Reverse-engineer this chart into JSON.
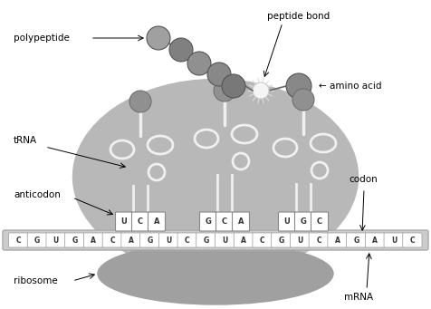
{
  "fig_width": 4.76,
  "fig_height": 3.41,
  "dpi": 100,
  "bg_color": "#ffffff",
  "ribosome_large_color": "#b8b8b8",
  "ribosome_small_color": "#a0a0a0",
  "mrna_bg_color": "#c8c8c8",
  "mrna_box_color": "#e8e8e8",
  "tRNA_white": "#f0f0f0",
  "gray_dark": "#707070",
  "gray_med": "#909090",
  "gray_light": "#b0b0b0",
  "mRNA_sequence": [
    "C",
    "G",
    "U",
    "G",
    "A",
    "C",
    "A",
    "G",
    "U",
    "C",
    "G",
    "U",
    "A",
    "C",
    "G",
    "U",
    "C",
    "A",
    "G",
    "A",
    "U",
    "C"
  ],
  "label_fontsize": 7.5,
  "anticodon1": [
    "U",
    "C",
    "A"
  ],
  "anticodon2": [
    "G",
    "C",
    "A"
  ],
  "anticodon3": [
    "U",
    "G",
    "C"
  ],
  "anticodon1_label": "U C A",
  "anticodon2_label": "G C A",
  "anticodon3_label": "U G C"
}
